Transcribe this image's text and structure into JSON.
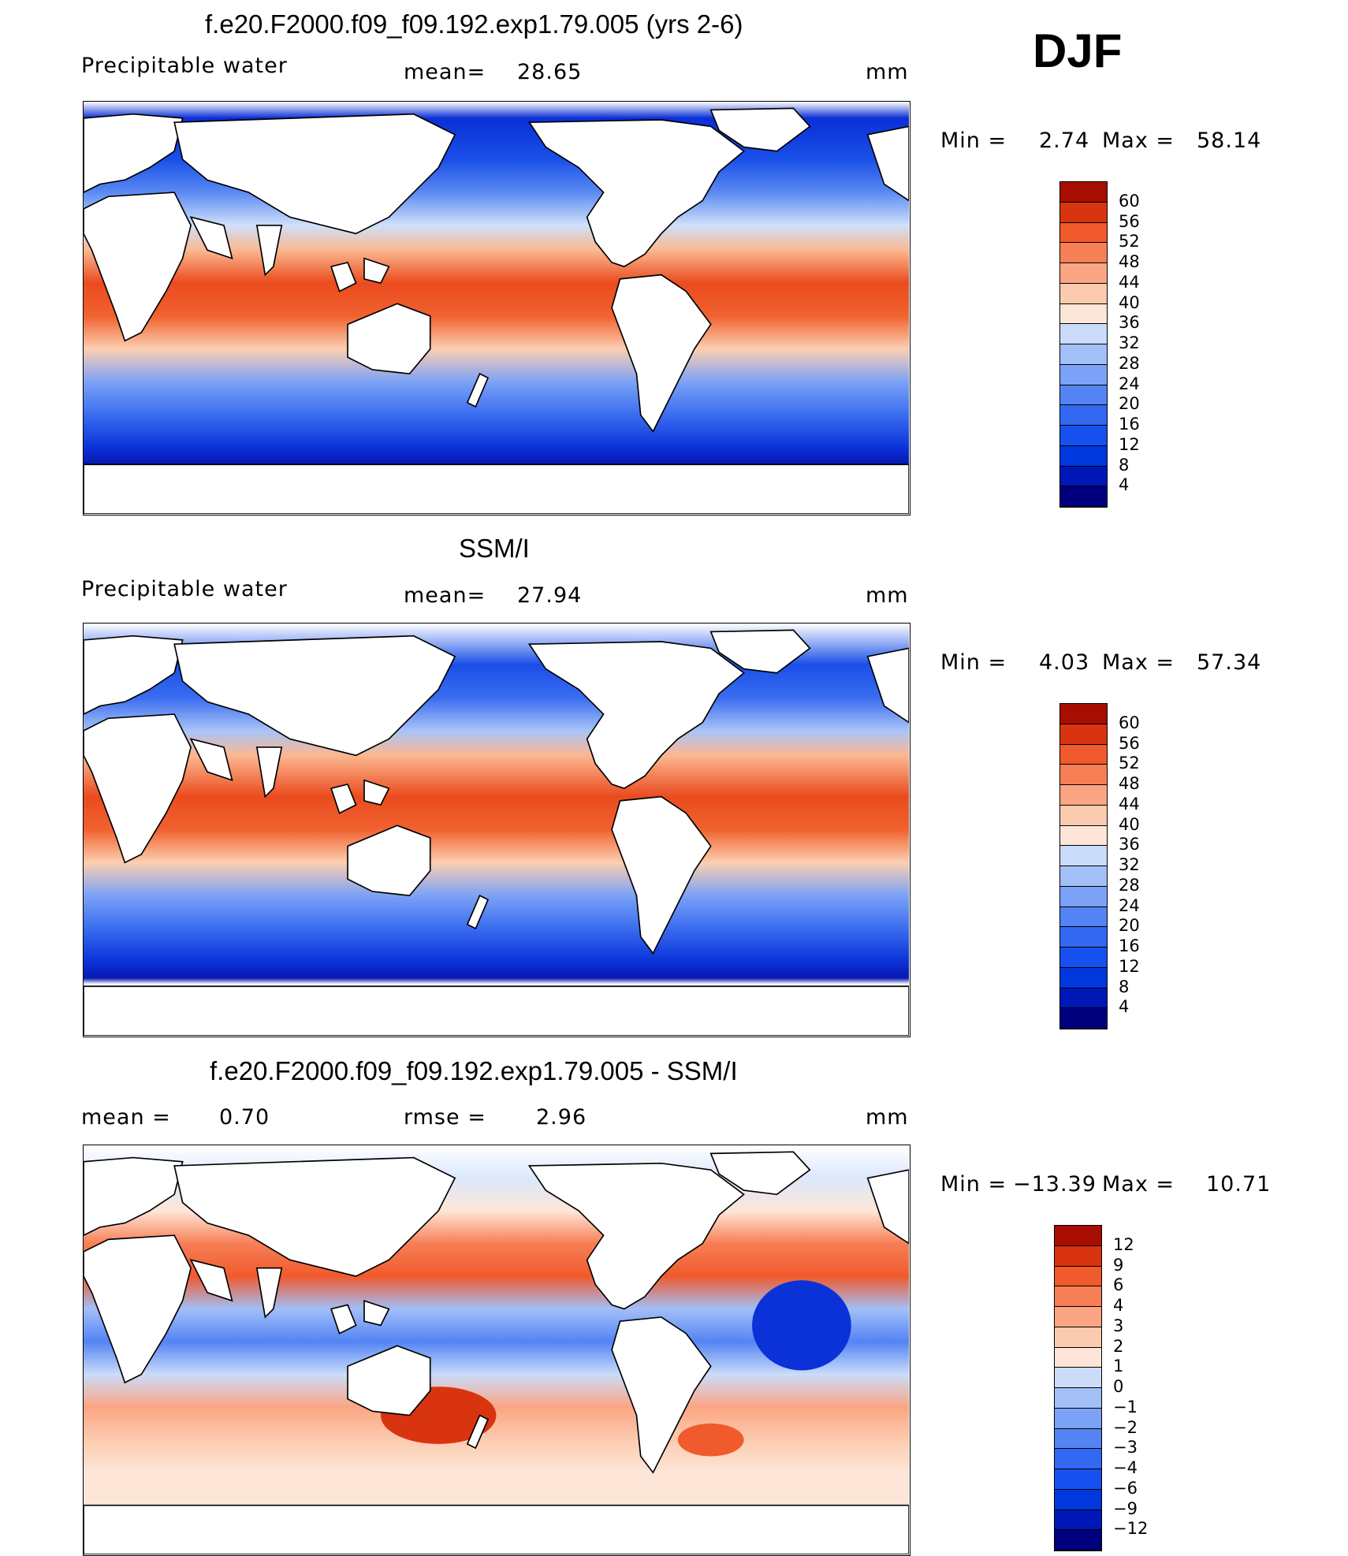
{
  "season": "DJF",
  "panels": [
    {
      "title": "f.e20.F2000.f09_f09.192.exp1.79.005 (yrs 2-6)",
      "left_label": "Precipitable water",
      "mid_label": "mean=",
      "mid_value": "28.65",
      "units": "mm",
      "minmax": {
        "min_label": "Min =",
        "min": "2.74",
        "max_label": "Max =",
        "max": "58.14"
      }
    },
    {
      "title": "SSM/I",
      "left_label": "Precipitable water",
      "mid_label": "mean=",
      "mid_value": "27.94",
      "units": "mm",
      "minmax": {
        "min_label": "Min =",
        "min": "4.03",
        "max_label": "Max =",
        "max": "57.34"
      }
    },
    {
      "title": "f.e20.F2000.f09_f09.192.exp1.79.005 - SSM/I",
      "left_label": "mean =",
      "left_value": "0.70",
      "mid_label": "rmse =",
      "mid_value": "2.96",
      "units": "mm",
      "minmax": {
        "min_label": "Min =",
        "min": "−13.39",
        "max_label": "Max =",
        "max": "10.71"
      }
    }
  ],
  "chart_data": [
    {
      "type": "heatmap",
      "title": "f.e20.F2000.f09_f09.192.exp1.79.005 (yrs 2-6)",
      "variable": "Precipitable water",
      "units": "mm",
      "mean": 28.65,
      "min": 2.74,
      "max": 58.14,
      "colorbar_levels": [
        4,
        8,
        12,
        16,
        20,
        24,
        28,
        32,
        36,
        40,
        44,
        48,
        52,
        56,
        60
      ],
      "colorbar_colors": [
        "#00007f",
        "#0018b8",
        "#0038dd",
        "#1650ee",
        "#3268f2",
        "#5484f4",
        "#7ba2f6",
        "#a2bff8",
        "#cadcfa",
        "#fde6d7",
        "#fccbaf",
        "#fba582",
        "#f77f56",
        "#f05a2c",
        "#d8340f",
        "#a80d02"
      ]
    },
    {
      "type": "heatmap",
      "title": "SSM/I",
      "variable": "Precipitable water",
      "units": "mm",
      "mean": 27.94,
      "min": 4.03,
      "max": 57.34,
      "colorbar_levels": [
        4,
        8,
        12,
        16,
        20,
        24,
        28,
        32,
        36,
        40,
        44,
        48,
        52,
        56,
        60
      ],
      "colorbar_colors": [
        "#00007f",
        "#0018b8",
        "#0038dd",
        "#1650ee",
        "#3268f2",
        "#5484f4",
        "#7ba2f6",
        "#a2bff8",
        "#cadcfa",
        "#fde6d7",
        "#fccbaf",
        "#fba582",
        "#f77f56",
        "#f05a2c",
        "#d8340f",
        "#a80d02"
      ]
    },
    {
      "type": "heatmap",
      "title": "f.e20.F2000.f09_f09.192.exp1.79.005 - SSM/I",
      "units": "mm",
      "mean": 0.7,
      "rmse": 2.96,
      "min": -13.39,
      "max": 10.71,
      "colorbar_levels": [
        "−12",
        "−9",
        "−6",
        "−4",
        "−3",
        "−2",
        "−1",
        "0",
        "1",
        "2",
        "3",
        "4",
        "6",
        "9",
        "12"
      ],
      "colorbar_colors": [
        "#00007f",
        "#0018b8",
        "#0038dd",
        "#1650ee",
        "#3268f2",
        "#5484f4",
        "#7ba2f6",
        "#a2bff8",
        "#cadcfa",
        "#fde6d7",
        "#fccbaf",
        "#fba582",
        "#f77f56",
        "#f05a2c",
        "#d8340f",
        "#a80d02"
      ]
    }
  ]
}
